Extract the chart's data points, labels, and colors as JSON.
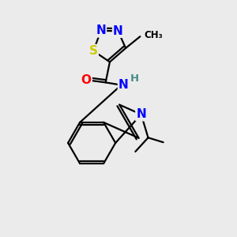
{
  "background_color": "#ebebeb",
  "atom_colors": {
    "N": "#0000ff",
    "S": "#cccc00",
    "O": "#ff0000",
    "H": "#4a8a8a",
    "C": "#000000"
  },
  "bond_color": "#000000",
  "bond_width": 1.6,
  "font_size_atoms": 11,
  "font_size_small": 9.5
}
